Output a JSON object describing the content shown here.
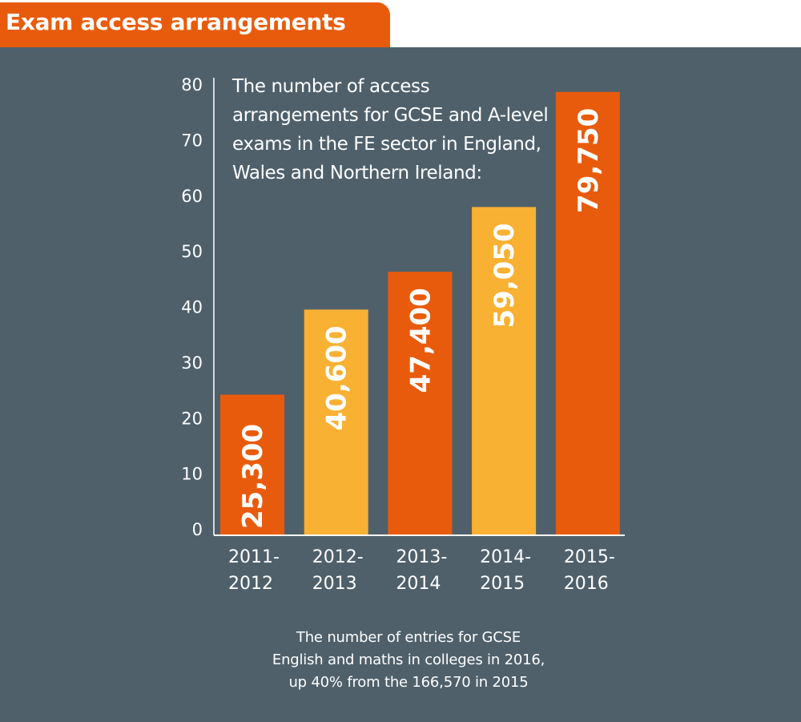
{
  "header": {
    "title": "Exam access arrangements"
  },
  "colors": {
    "orange": "#e95b0c",
    "amber": "#f8b133",
    "background": "#4f606b",
    "text": "#ffffff"
  },
  "chart_data": {
    "type": "bar",
    "title": "The number of access arrangements for GCSE and A-level exams in the FE sector in England, Wales and Northern Ireland:",
    "categories": [
      "2011-2012",
      "2012-2013",
      "2013-2014",
      "2014-2015",
      "2015-2016"
    ],
    "category_lines": [
      [
        "2011-",
        "2012"
      ],
      [
        "2012-",
        "2013"
      ],
      [
        "2013-",
        "2014"
      ],
      [
        "2014-",
        "2015"
      ],
      [
        "2015-",
        "2016"
      ]
    ],
    "values": [
      25300,
      40600,
      47400,
      59050,
      79750
    ],
    "value_labels": [
      "25,300",
      "40,600",
      "47,400",
      "59,050",
      "79,750"
    ],
    "bar_colors": [
      "#e95b0c",
      "#f8b133",
      "#e95b0c",
      "#f8b133",
      "#e95b0c"
    ],
    "yticks": [
      "0",
      "10",
      "20",
      "30",
      "40",
      "50",
      "60",
      "70",
      "80"
    ],
    "ylim": [
      0,
      80
    ],
    "yunit": "thousands",
    "xlabel": "",
    "ylabel": "",
    "grid": false,
    "legend": "none"
  },
  "footnote": {
    "lines": [
      "The number of entries for GCSE",
      "English and maths in colleges in 2016,",
      "up 40% from the 166,570 in 2015"
    ]
  }
}
